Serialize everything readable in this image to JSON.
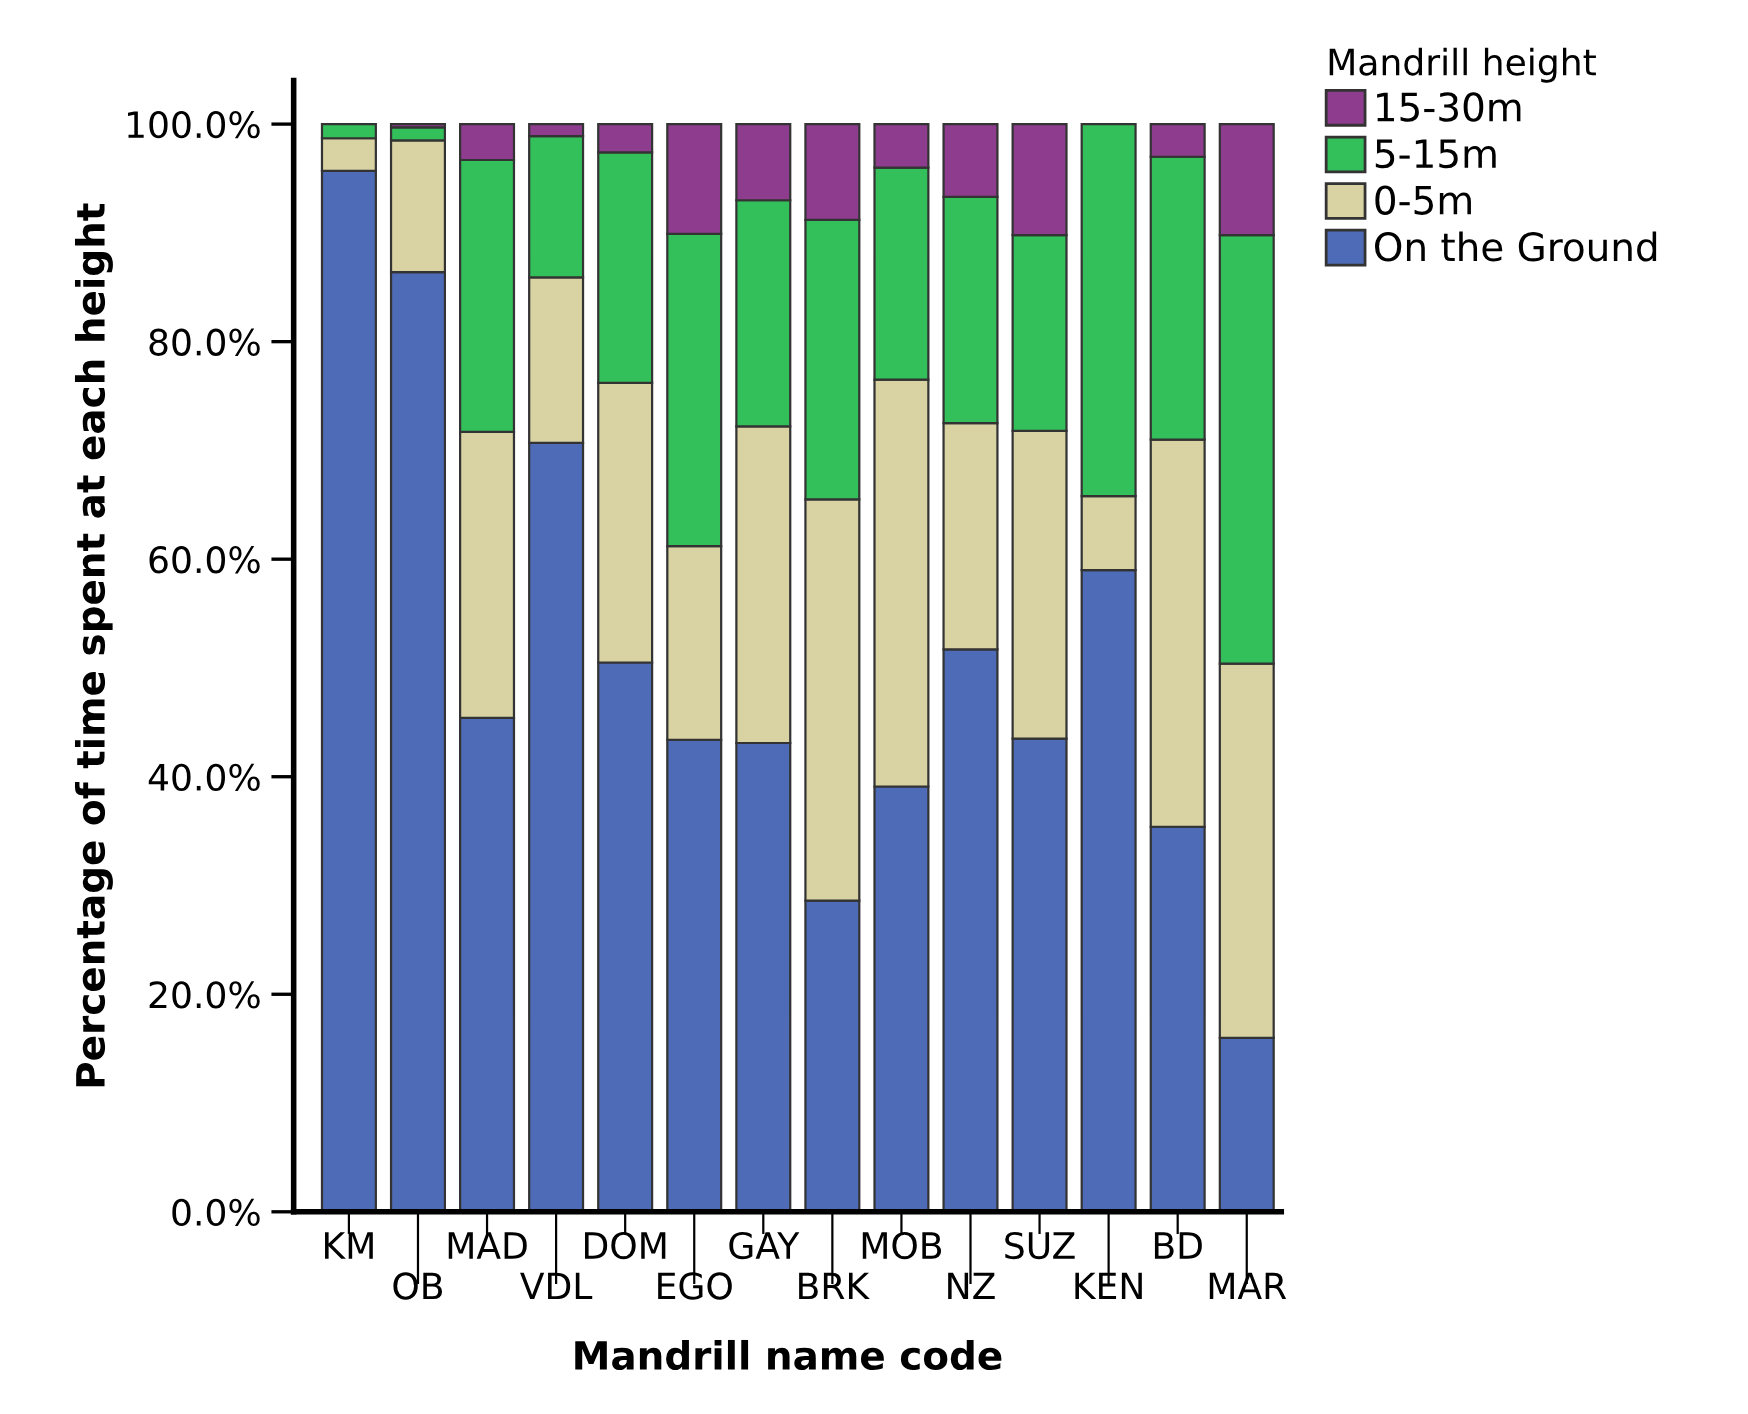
{
  "chart_data": {
    "type": "bar",
    "stacked": true,
    "xlabel": "Mandrill name code",
    "ylabel": "Percentage of time spent at each height",
    "legend_title": "Mandrill height",
    "legend": "top right",
    "grid": false,
    "categories": [
      "KM",
      "OB",
      "MAD",
      "VDL",
      "DOM",
      "EGO",
      "GAY",
      "BRK",
      "MOB",
      "NZ",
      "SUZ",
      "KEN",
      "BD",
      "MAR"
    ],
    "series": [
      {
        "name": "On the Ground",
        "color": "#4e6bb7",
        "values": [
          95.7,
          86.4,
          45.4,
          70.7,
          50.5,
          43.4,
          43.1,
          28.6,
          39.1,
          51.7,
          43.5,
          59.0,
          35.4,
          16.0
        ]
      },
      {
        "name": "0-5m",
        "color": "#d9d3a3",
        "values": [
          3.0,
          12.1,
          26.3,
          15.2,
          25.7,
          17.8,
          29.1,
          36.9,
          37.4,
          20.8,
          28.3,
          6.8,
          35.6,
          34.4
        ]
      },
      {
        "name": "5-15m",
        "color": "#33bf5a",
        "values": [
          1.3,
          1.2,
          25.0,
          13.0,
          21.2,
          28.7,
          20.8,
          25.7,
          19.5,
          20.8,
          18.0,
          34.2,
          26.0,
          39.4
        ]
      },
      {
        "name": "15-30m",
        "color": "#8e3d8e",
        "values": [
          null,
          0.3,
          3.3,
          1.1,
          2.6,
          10.1,
          7.0,
          8.8,
          4.0,
          6.7,
          10.2,
          null,
          3.0,
          10.2
        ]
      }
    ],
    "ylim": [
      0,
      104
    ],
    "yticks": [
      {
        "value": 0,
        "label": "0.0%"
      },
      {
        "value": 20,
        "label": "20.0%"
      },
      {
        "value": 40,
        "label": "40.0%"
      },
      {
        "value": 60,
        "label": "60.0%"
      },
      {
        "value": 80,
        "label": "80.0%"
      },
      {
        "value": 100,
        "label": "100.0%"
      }
    ]
  }
}
